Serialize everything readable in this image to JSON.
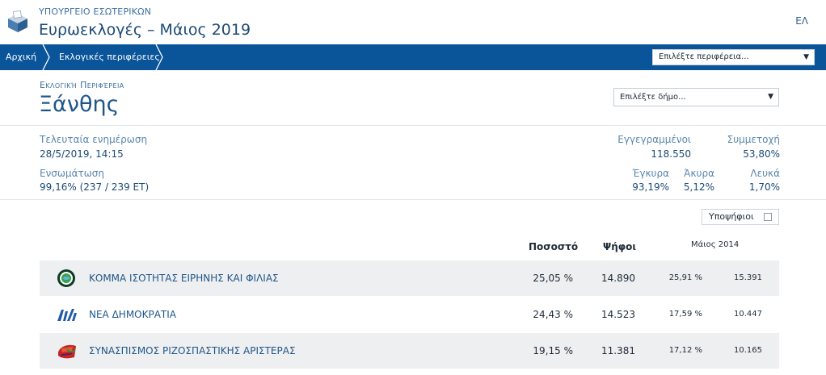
{
  "header": {
    "ministry": "ΥΠΟΥΡΓΕΙΟ ΕΣΩΤΕΡΙΚΩΝ",
    "title": "Ευρωεκλογές – Μάιος 2019",
    "language": "ΕΛ"
  },
  "nav": {
    "home": "Αρχική",
    "regions": "Εκλογικές περιφέρειες",
    "region_select": "Επιλέξτε περιφέρεια..."
  },
  "region": {
    "label": "Εκλογική Περιφέρεια",
    "name": "Ξάνθης",
    "municipality_select": "Επιλέξτε δήμο..."
  },
  "stats": {
    "last_update_label": "Τελευταία ενημέρωση",
    "last_update_value": "28/5/2019, 14:15",
    "integration_label": "Ενσωμάτωση",
    "integration_value": "99,16% (237 / 239 ΕΤ)",
    "registered_label": "Εγγεγραμμένοι",
    "registered_value": "118.550",
    "turnout_label": "Συμμετοχή",
    "turnout_value": "53,80%",
    "valid_label": "Έγκυρα",
    "valid_value": "93,19%",
    "invalid_label": "Άκυρα",
    "invalid_value": "5,12%",
    "blank_label": "Λευκά",
    "blank_value": "1,70%"
  },
  "results": {
    "candidates_toggle": "Υποψήφιοι",
    "candidates_checked": false,
    "columns": {
      "percent": "Ποσοστό",
      "votes": "Ψήφοι",
      "previous": "Μάιος 2014"
    },
    "rows": [
      {
        "party": "ΚΟΜΜΑ ΙΣΟΤΗΤΑΣ ΕΙΡΗΝΗΣ ΚΑΙ ΦΙΛΙΑΣ",
        "icon": "keif-logo-icon",
        "percent": "25,05 %",
        "votes": "14.890",
        "percent_2014": "25,91 %",
        "votes_2014": "15.391"
      },
      {
        "party": "ΝΕΑ ΔΗΜΟΚΡΑΤΙΑ",
        "icon": "nd-logo-icon",
        "percent": "24,43 %",
        "votes": "14.523",
        "percent_2014": "17,59 %",
        "votes_2014": "10.447"
      },
      {
        "party": "ΣΥΝΑΣΠΙΣΜΟΣ ΡΙΖΟΣΠΑΣΤΙΚΗΣ ΑΡΙΣΤΕΡΑΣ",
        "icon": "syriza-logo-icon",
        "percent": "19,15 %",
        "votes": "11.381",
        "percent_2014": "17,12 %",
        "votes_2014": "10.165"
      }
    ]
  },
  "colors": {
    "nav_bar": "#0a549a",
    "title_text": "#1c4a76",
    "row_alt": "#eeeff0"
  }
}
